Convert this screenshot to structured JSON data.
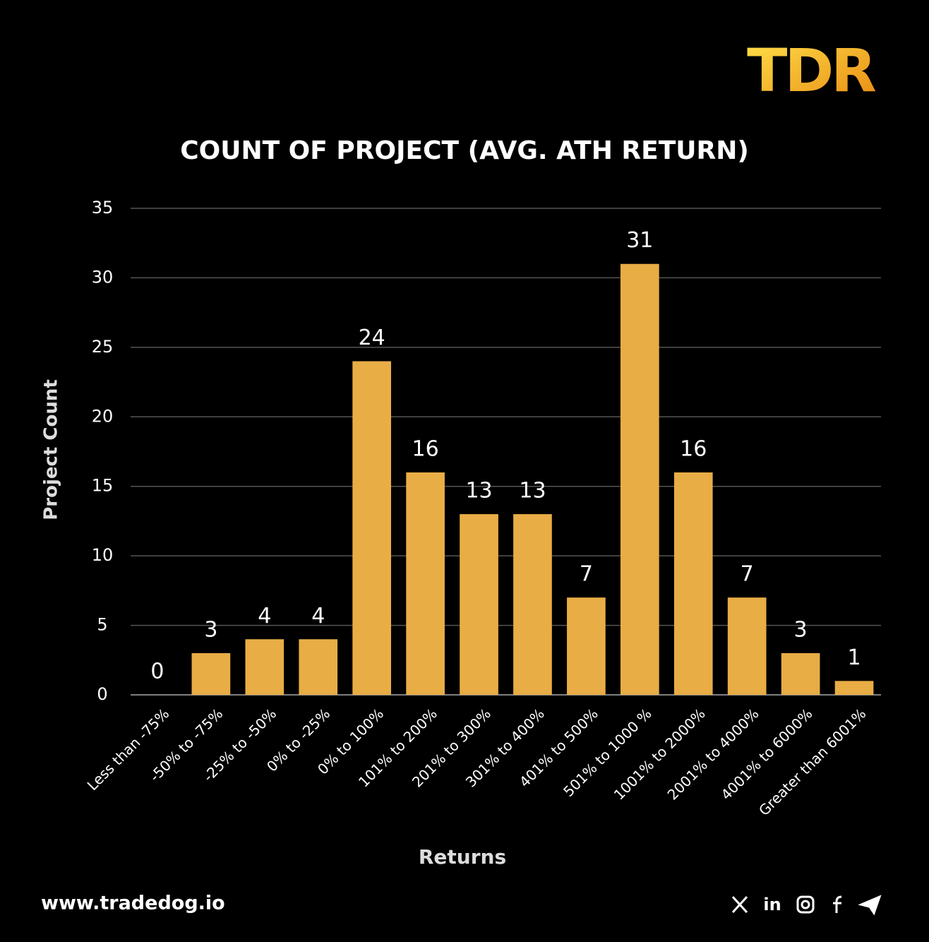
{
  "logo": "TDR",
  "footer": "www.tradedog.io",
  "chart_data": {
    "type": "bar",
    "title": "COUNT OF PROJECT (AVG. ATH RETURN)",
    "x_label": "Returns",
    "y_label": "Project Count",
    "categories": [
      "Less than -75%",
      "-50% to  -75%",
      "-25% to  -50%",
      "0% to  -25%",
      "0% to 100%",
      "101% to 200%",
      "201% to 300%",
      "301% to 400%",
      "401% to 500%",
      "501% to 1000 %",
      "1001% to 2000%",
      "2001% to 4000%",
      "4001% to 6000%",
      "Greater than 6001%"
    ],
    "values": [
      0,
      3,
      4,
      4,
      24,
      16,
      13,
      13,
      7,
      31,
      16,
      7,
      3,
      1
    ],
    "color": "#e8ad45",
    "ylim": [
      0,
      35
    ],
    "yticks": [
      0,
      5,
      10,
      15,
      20,
      25,
      30,
      35
    ],
    "grid": true
  }
}
